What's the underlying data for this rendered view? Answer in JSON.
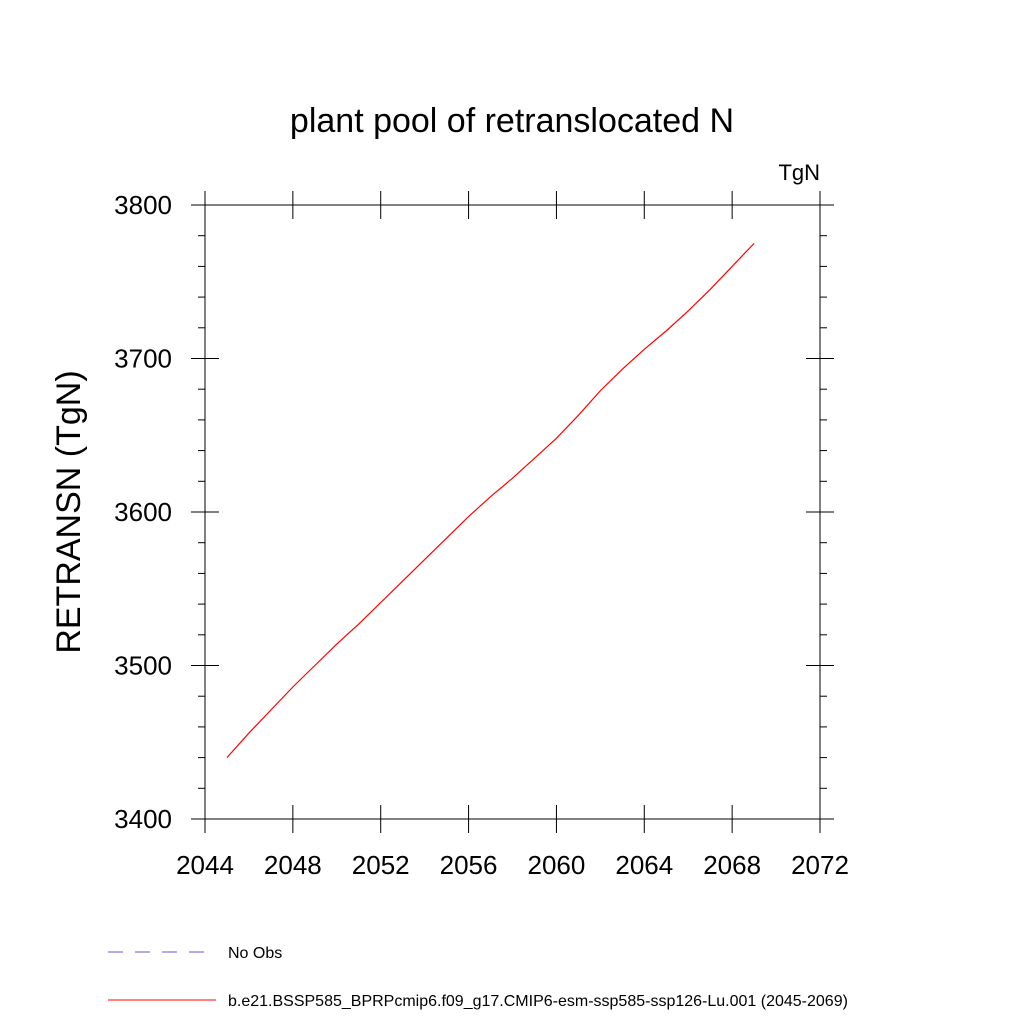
{
  "chart_data": {
    "type": "line",
    "title": "plant pool of retranslocated N",
    "units": "TgN",
    "xlabel": "",
    "ylabel": "RETRANSN  (TgN)",
    "xlim": [
      2044,
      2072
    ],
    "ylim": [
      3400,
      3800
    ],
    "x_ticks": [
      2044,
      2048,
      2052,
      2056,
      2060,
      2064,
      2068,
      2072
    ],
    "y_ticks": [
      3400,
      3500,
      3600,
      3700,
      3800
    ],
    "grid": false,
    "legend_placement": "bottom-left, below plot",
    "series": [
      {
        "name": "b.e21.BSSP585_BPRPcmip6.f09_g17.CMIP6-esm-ssp585-ssp126-Lu.001 (2045-2069)",
        "color": "#ff0000",
        "style": "solid",
        "x": [
          2045,
          2046,
          2047,
          2048,
          2049,
          2050,
          2051,
          2052,
          2053,
          2054,
          2055,
          2056,
          2057,
          2058,
          2059,
          2060,
          2061,
          2062,
          2063,
          2064,
          2065,
          2066,
          2067,
          2068,
          2069
        ],
        "y": [
          3440,
          3456,
          3471,
          3486,
          3500,
          3514,
          3527,
          3541,
          3555,
          3569,
          3583,
          3597,
          3610,
          3622,
          3635,
          3648,
          3663,
          3679,
          3693,
          3706,
          3718,
          3731,
          3745,
          3760,
          3775
        ]
      }
    ],
    "legend": [
      {
        "label": "No Obs",
        "color": "#6a5acd",
        "style": "dashed"
      },
      {
        "label": "b.e21.BSSP585_BPRPcmip6.f09_g17.CMIP6-esm-ssp585-ssp126-Lu.001 (2045-2069)",
        "color": "#ff0000",
        "style": "solid"
      }
    ]
  }
}
